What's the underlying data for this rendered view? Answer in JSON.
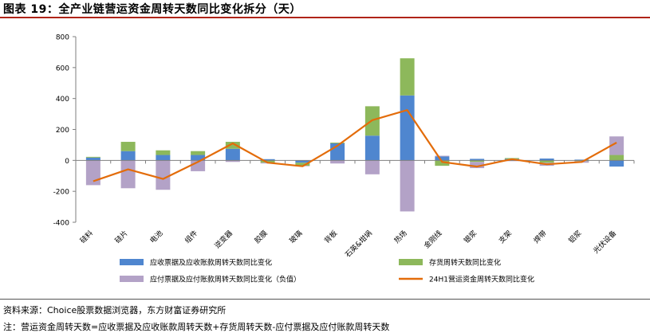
{
  "header": {
    "title": "图表 19：全产业链营运资金周转天数同比变化拆分（天）"
  },
  "footer": {
    "source": "资料来源：Choice股票数据浏览器，东方财富证券研究所",
    "note": "注：营运资金周转天数=应收票据及应收账款周转天数+存货周转天数-应付票据及应付账款周转天数"
  },
  "colors": {
    "receivables": "#4f86cf",
    "inventory": "#8db85b",
    "payables": "#b3a2c7",
    "line": "#e36c0a"
  },
  "chart_data": {
    "type": "bar",
    "stacked": true,
    "categories": [
      "硅料",
      "硅片",
      "电池",
      "组件",
      "逆变器",
      "胶膜",
      "玻璃",
      "背板",
      "石英&坩埚",
      "热场",
      "金刚线",
      "银浆",
      "支架",
      "焊带",
      "铝浆",
      "光伏设备"
    ],
    "ylim": [
      -400,
      800
    ],
    "yticks": [
      -400,
      -200,
      0,
      200,
      400,
      600,
      800
    ],
    "grid": false,
    "legend_position": "bottom",
    "series": [
      {
        "name": "应收票据及应收账款周转天数同比变化",
        "kind": "bar",
        "color": "#4f86cf",
        "values": [
          18,
          60,
          35,
          35,
          75,
          8,
          -15,
          110,
          160,
          420,
          25,
          10,
          10,
          12,
          5,
          -40
        ]
      },
      {
        "name": "存货周转天数同比变化",
        "kind": "bar",
        "color": "#8db85b",
        "values": [
          5,
          60,
          30,
          25,
          45,
          -15,
          -20,
          5,
          190,
          240,
          -35,
          -10,
          5,
          -15,
          -5,
          35
        ]
      },
      {
        "name": "应付票据及应付账款周转天数同比变化（负值）",
        "kind": "bar",
        "color": "#b3a2c7",
        "values": [
          -160,
          -180,
          -190,
          -70,
          -10,
          -5,
          -3,
          -20,
          -90,
          -330,
          5,
          -40,
          -5,
          -20,
          -10,
          120
        ]
      },
      {
        "name": "24H1营运资金周转天数同比变化",
        "kind": "line",
        "color": "#e36c0a",
        "values": [
          -135,
          -58,
          -120,
          -10,
          110,
          -15,
          -38,
          95,
          260,
          325,
          -10,
          -40,
          8,
          -25,
          -10,
          115
        ]
      }
    ]
  }
}
